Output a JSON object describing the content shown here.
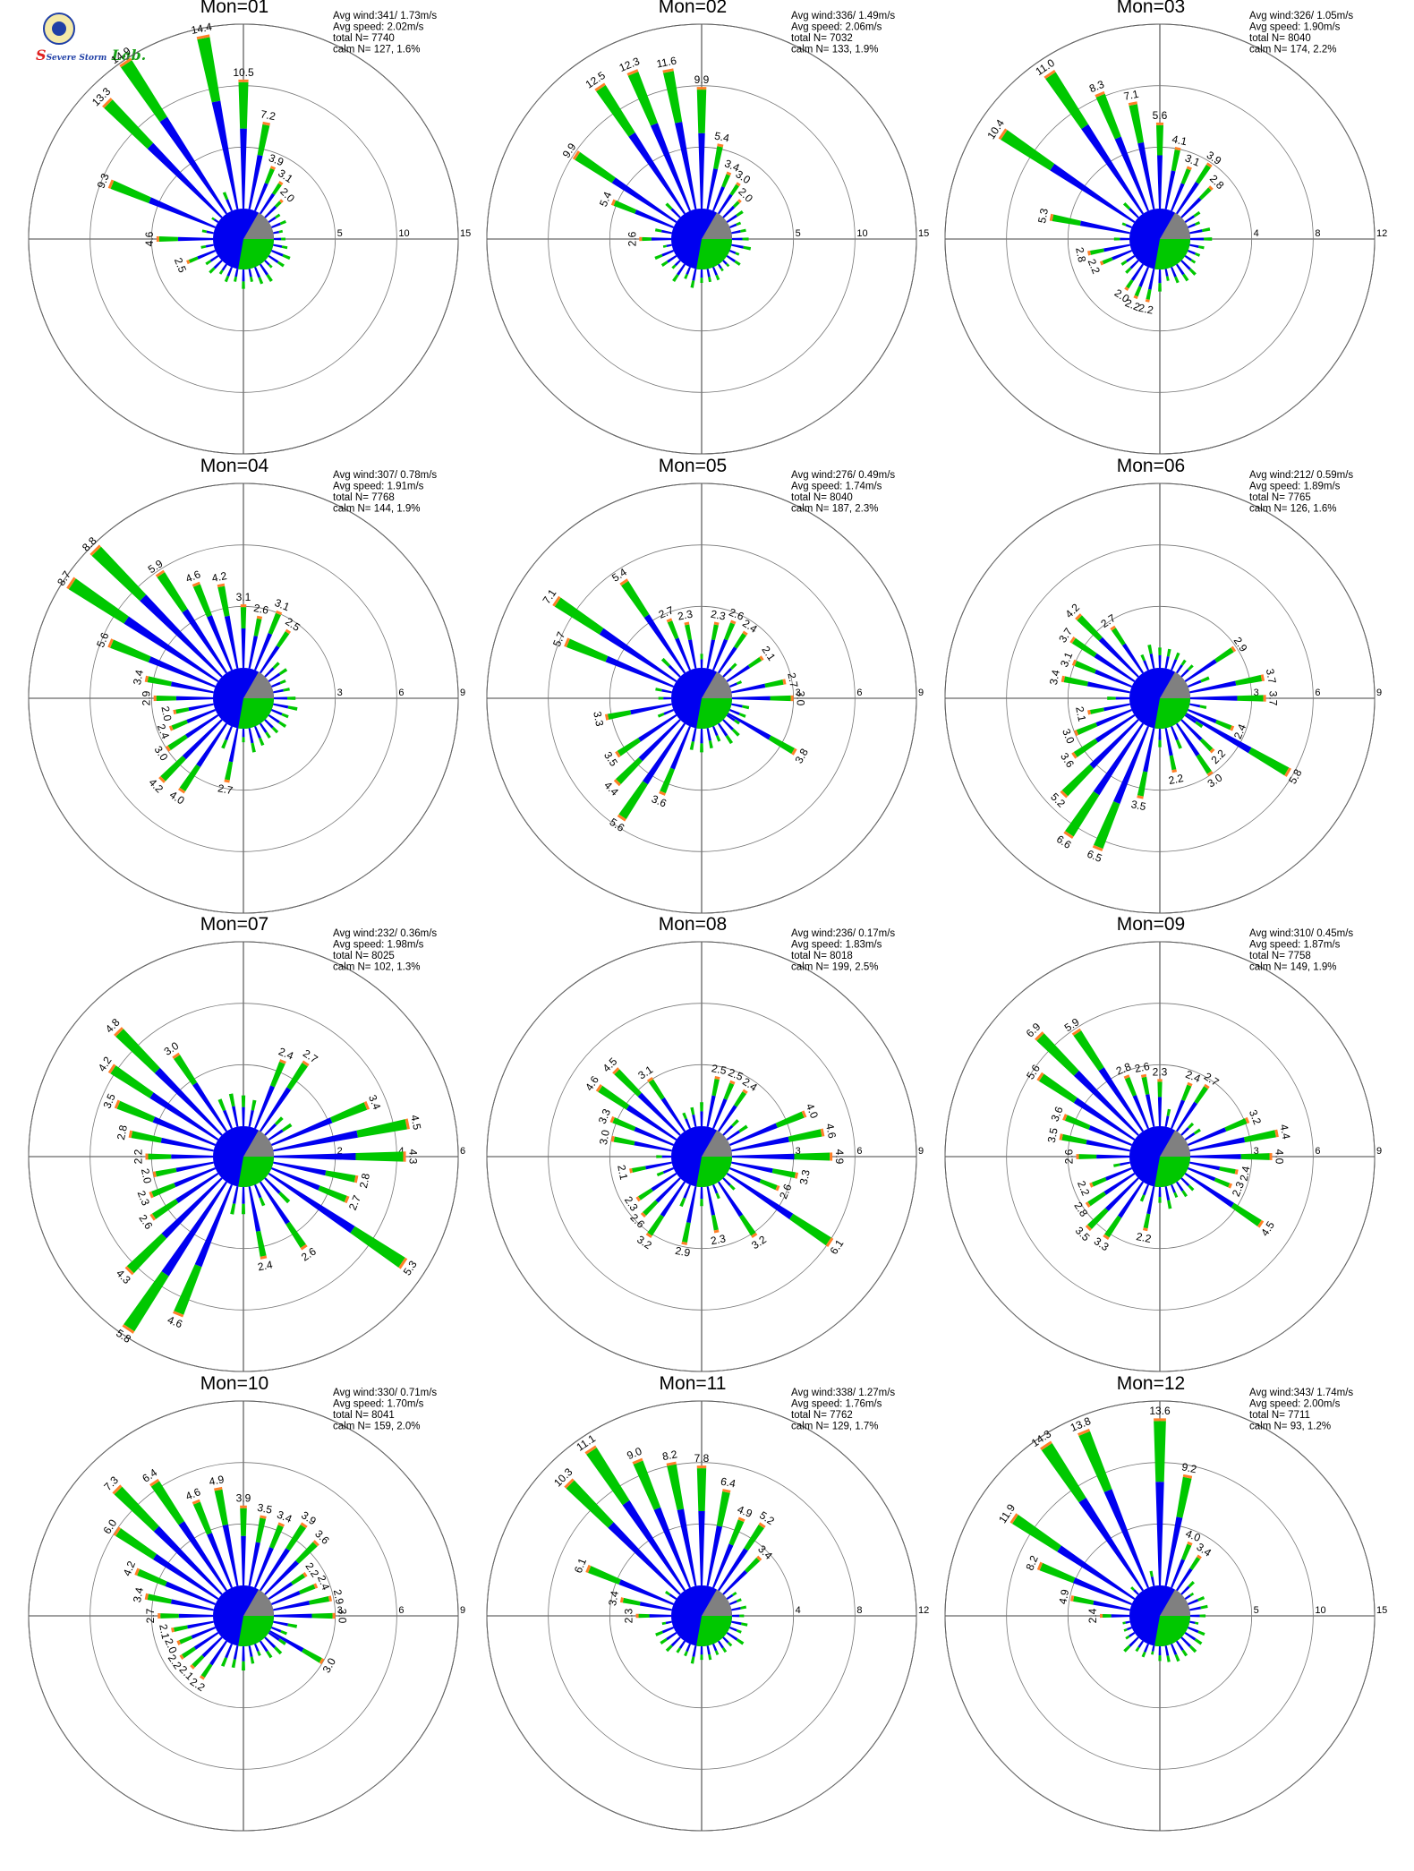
{
  "logo": {
    "text_a": "Severe",
    "text_b": "Storm",
    "text_c": "Lab."
  },
  "colors": {
    "outer_band": "#00c800",
    "inner_band": "#0000f0",
    "top_band": "#ff7f27",
    "calm": "#808080",
    "axis": "#000000",
    "grid": "#000000"
  },
  "chart_data": [
    {
      "type": "wind-rose",
      "title": "Mon=01",
      "ring_labels": [
        "5",
        "10",
        "15"
      ],
      "rmax": 15,
      "stats": {
        "avg_wind": "Avg wind:341/ 1.73m/s",
        "avg_speed": "Avg speed: 2.02m/s",
        "total_n": "total N=      7740",
        "calm_n": "calm N=    127,   1.6%"
      },
      "labeled_directions": [
        {
          "dir": 247.5,
          "value": "2.5"
        },
        {
          "dir": 270,
          "value": "4.6"
        },
        {
          "dir": 292.5,
          "value": "9.3"
        },
        {
          "dir": 315,
          "value": "13.3"
        },
        {
          "dir": 326.25,
          "value": "14.9"
        },
        {
          "dir": 348.75,
          "value": "14.4"
        },
        {
          "dir": 0,
          "value": "10.5"
        },
        {
          "dir": 11.25,
          "value": "7.2"
        },
        {
          "dir": 22.5,
          "value": "3.9"
        },
        {
          "dir": 33.75,
          "value": "3.1"
        },
        {
          "dir": 45,
          "value": "2.0"
        }
      ]
    },
    {
      "type": "wind-rose",
      "title": "Mon=02",
      "ring_labels": [
        "5",
        "10",
        "15"
      ],
      "rmax": 15,
      "stats": {
        "avg_wind": "Avg wind:336/ 1.49m/s",
        "avg_speed": "Avg speed: 2.06m/s",
        "total_n": "total N=      7032",
        "calm_n": "calm N=    133,   1.9%"
      },
      "labeled_directions": [
        {
          "dir": 270,
          "value": "2.6"
        },
        {
          "dir": 292.5,
          "value": "5.4"
        },
        {
          "dir": 303.75,
          "value": "9.9"
        },
        {
          "dir": 326.25,
          "value": "12.5"
        },
        {
          "dir": 337.5,
          "value": "12.3"
        },
        {
          "dir": 348.75,
          "value": "11.6"
        },
        {
          "dir": 0,
          "value": "9.9"
        },
        {
          "dir": 11.25,
          "value": "5.4"
        },
        {
          "dir": 22.5,
          "value": "3.4"
        },
        {
          "dir": 33.75,
          "value": "3.0"
        },
        {
          "dir": 45,
          "value": "2.0"
        }
      ]
    },
    {
      "type": "wind-rose",
      "title": "Mon=03",
      "ring_labels": [
        "4",
        "8",
        "12"
      ],
      "rmax": 12,
      "stats": {
        "avg_wind": "Avg wind:326/ 1.05m/s",
        "avg_speed": "Avg speed: 1.90m/s",
        "total_n": "total N=      8040",
        "calm_n": "calm N=    174,   2.2%"
      },
      "labeled_directions": [
        {
          "dir": 247.5,
          "value": "2.2"
        },
        {
          "dir": 258.75,
          "value": "2.8"
        },
        {
          "dir": 281.25,
          "value": "5.3"
        },
        {
          "dir": 303.75,
          "value": "10.4"
        },
        {
          "dir": 326.25,
          "value": "11.0"
        },
        {
          "dir": 337.5,
          "value": "8.3"
        },
        {
          "dir": 348.75,
          "value": "7.1"
        },
        {
          "dir": 0,
          "value": "5.6"
        },
        {
          "dir": 11.25,
          "value": "4.1"
        },
        {
          "dir": 22.5,
          "value": "3.1"
        },
        {
          "dir": 33.75,
          "value": "3.9"
        },
        {
          "dir": 45,
          "value": "2.8"
        },
        {
          "dir": 191.25,
          "value": "2.2"
        },
        {
          "dir": 202.5,
          "value": "2.2"
        },
        {
          "dir": 213.75,
          "value": "2.0"
        }
      ]
    },
    {
      "type": "wind-rose",
      "title": "Mon=04",
      "ring_labels": [
        "3",
        "6",
        "9"
      ],
      "rmax": 9,
      "stats": {
        "avg_wind": "Avg wind:307/ 0.78m/s",
        "avg_speed": "Avg speed: 1.91m/s",
        "total_n": "total N=      7768",
        "calm_n": "calm N=    144,   1.9%"
      },
      "labeled_directions": [
        {
          "dir": 258.75,
          "value": "2.0"
        },
        {
          "dir": 270,
          "value": "2.9"
        },
        {
          "dir": 281.25,
          "value": "3.4"
        },
        {
          "dir": 292.5,
          "value": "5.6"
        },
        {
          "dir": 303.75,
          "value": "8.7"
        },
        {
          "dir": 315,
          "value": "8.8"
        },
        {
          "dir": 326.25,
          "value": "5.9"
        },
        {
          "dir": 337.5,
          "value": "4.6"
        },
        {
          "dir": 348.75,
          "value": "4.2"
        },
        {
          "dir": 0,
          "value": "3.1"
        },
        {
          "dir": 11.25,
          "value": "2.6"
        },
        {
          "dir": 22.5,
          "value": "3.1"
        },
        {
          "dir": 33.75,
          "value": "2.5"
        },
        {
          "dir": 191.25,
          "value": "2.7"
        },
        {
          "dir": 213.75,
          "value": "4.0"
        },
        {
          "dir": 225,
          "value": "4.2"
        },
        {
          "dir": 236.25,
          "value": "3.0"
        },
        {
          "dir": 247.5,
          "value": "2.4"
        }
      ]
    },
    {
      "type": "wind-rose",
      "title": "Mon=05",
      "ring_labels": [
        "3",
        "6",
        "9"
      ],
      "rmax": 9,
      "stats": {
        "avg_wind": "Avg wind:276/ 0.49m/s",
        "avg_speed": "Avg speed: 1.74m/s",
        "total_n": "total N=      8040",
        "calm_n": "calm N=    187,   2.3%"
      },
      "labeled_directions": [
        {
          "dir": 292.5,
          "value": "5.7"
        },
        {
          "dir": 303.75,
          "value": "7.1"
        },
        {
          "dir": 326.25,
          "value": "5.4"
        },
        {
          "dir": 337.5,
          "value": "2.7"
        },
        {
          "dir": 348.75,
          "value": "2.3"
        },
        {
          "dir": 11.25,
          "value": "2.3"
        },
        {
          "dir": 22.5,
          "value": "2.6"
        },
        {
          "dir": 33.75,
          "value": "2.4"
        },
        {
          "dir": 56.25,
          "value": "2.1"
        },
        {
          "dir": 78.75,
          "value": "2.7"
        },
        {
          "dir": 90,
          "value": "3.0"
        },
        {
          "dir": 120,
          "value": "3.8"
        },
        {
          "dir": 202.5,
          "value": "3.6"
        },
        {
          "dir": 213.75,
          "value": "5.6"
        },
        {
          "dir": 225,
          "value": "4.4"
        },
        {
          "dir": 236.25,
          "value": "3.5"
        },
        {
          "dir": 258.75,
          "value": "3.3"
        }
      ]
    },
    {
      "type": "wind-rose",
      "title": "Mon=06",
      "ring_labels": [
        "3",
        "6",
        "9"
      ],
      "rmax": 9,
      "stats": {
        "avg_wind": "Avg wind:212/ 0.59m/s",
        "avg_speed": "Avg speed: 1.89m/s",
        "total_n": "total N=      7765",
        "calm_n": "calm N=    126,   1.6%"
      },
      "labeled_directions": [
        {
          "dir": 281.25,
          "value": "3.4"
        },
        {
          "dir": 292.5,
          "value": "3.1"
        },
        {
          "dir": 303.75,
          "value": "3.7"
        },
        {
          "dir": 315,
          "value": "4.2"
        },
        {
          "dir": 326.25,
          "value": "2.7"
        },
        {
          "dir": 56.25,
          "value": "2.9"
        },
        {
          "dir": 78.75,
          "value": "3.7"
        },
        {
          "dir": 90,
          "value": "3.7"
        },
        {
          "dir": 112.5,
          "value": "2.4"
        },
        {
          "dir": 120,
          "value": "5.8"
        },
        {
          "dir": 135,
          "value": "2.2"
        },
        {
          "dir": 146.25,
          "value": "3.0"
        },
        {
          "dir": 168.75,
          "value": "2.2"
        },
        {
          "dir": 191.25,
          "value": "3.5"
        },
        {
          "dir": 202.5,
          "value": "6.5"
        },
        {
          "dir": 213.75,
          "value": "6.6"
        },
        {
          "dir": 225,
          "value": "5.2"
        },
        {
          "dir": 236.25,
          "value": "3.6"
        },
        {
          "dir": 247.5,
          "value": "3.0"
        },
        {
          "dir": 258.75,
          "value": "2.1"
        }
      ]
    },
    {
      "type": "wind-rose",
      "title": "Mon=07",
      "ring_labels": [
        "2",
        "4",
        "6"
      ],
      "rmax": 6,
      "stats": {
        "avg_wind": "Avg wind:232/ 0.36m/s",
        "avg_speed": "Avg speed: 1.98m/s",
        "total_n": "total N=      8025",
        "calm_n": "calm N=    102,   1.3%"
      },
      "labeled_directions": [
        {
          "dir": 270,
          "value": "2.2"
        },
        {
          "dir": 281.25,
          "value": "2.8"
        },
        {
          "dir": 292.5,
          "value": "3.5"
        },
        {
          "dir": 303.75,
          "value": "4.2"
        },
        {
          "dir": 315,
          "value": "4.8"
        },
        {
          "dir": 326.25,
          "value": "3.0"
        },
        {
          "dir": 22.5,
          "value": "2.4"
        },
        {
          "dir": 33.75,
          "value": "2.7"
        },
        {
          "dir": 67.5,
          "value": "3.4"
        },
        {
          "dir": 78.75,
          "value": "4.5"
        },
        {
          "dir": 90,
          "value": "4.3"
        },
        {
          "dir": 101.25,
          "value": "2.8"
        },
        {
          "dir": 112.5,
          "value": "2.7"
        },
        {
          "dir": 123.75,
          "value": "5.3"
        },
        {
          "dir": 146.25,
          "value": "2.6"
        },
        {
          "dir": 168.75,
          "value": "2.4"
        },
        {
          "dir": 202.5,
          "value": "4.6"
        },
        {
          "dir": 213.75,
          "value": "5.8"
        },
        {
          "dir": 225,
          "value": "4.3"
        },
        {
          "dir": 236.25,
          "value": "2.6"
        },
        {
          "dir": 247.5,
          "value": "2.3"
        },
        {
          "dir": 258.75,
          "value": "2.0"
        }
      ]
    },
    {
      "type": "wind-rose",
      "title": "Mon=08",
      "ring_labels": [
        "3",
        "6",
        "9"
      ],
      "rmax": 9,
      "stats": {
        "avg_wind": "Avg wind:236/ 0.17m/s",
        "avg_speed": "Avg speed: 1.83m/s",
        "total_n": "total N=      8018",
        "calm_n": "calm N=    199,   2.5%"
      },
      "labeled_directions": [
        {
          "dir": 281.25,
          "value": "3.0"
        },
        {
          "dir": 292.5,
          "value": "3.3"
        },
        {
          "dir": 303.75,
          "value": "4.6"
        },
        {
          "dir": 315,
          "value": "4.5"
        },
        {
          "dir": 326.25,
          "value": "3.1"
        },
        {
          "dir": 11.25,
          "value": "2.5"
        },
        {
          "dir": 22.5,
          "value": "2.5"
        },
        {
          "dir": 33.75,
          "value": "2.4"
        },
        {
          "dir": 67.5,
          "value": "4.0"
        },
        {
          "dir": 78.75,
          "value": "4.6"
        },
        {
          "dir": 90,
          "value": "4.9"
        },
        {
          "dir": 101.25,
          "value": "3.3"
        },
        {
          "dir": 112.5,
          "value": "2.6"
        },
        {
          "dir": 123.75,
          "value": "6.1"
        },
        {
          "dir": 146.25,
          "value": "3.2"
        },
        {
          "dir": 168.75,
          "value": "2.3"
        },
        {
          "dir": 191.25,
          "value": "2.9"
        },
        {
          "dir": 213.75,
          "value": "3.2"
        },
        {
          "dir": 225,
          "value": "2.6"
        },
        {
          "dir": 236.25,
          "value": "2.3"
        },
        {
          "dir": 258.75,
          "value": "2.1"
        }
      ]
    },
    {
      "type": "wind-rose",
      "title": "Mon=09",
      "ring_labels": [
        "3",
        "6",
        "9"
      ],
      "rmax": 9,
      "stats": {
        "avg_wind": "Avg wind:310/ 0.45m/s",
        "avg_speed": "Avg speed: 1.87m/s",
        "total_n": "total N=      7758",
        "calm_n": "calm N=    149,   1.9%"
      },
      "labeled_directions": [
        {
          "dir": 270,
          "value": "2.6"
        },
        {
          "dir": 281.25,
          "value": "3.5"
        },
        {
          "dir": 292.5,
          "value": "3.6"
        },
        {
          "dir": 303.75,
          "value": "5.6"
        },
        {
          "dir": 315,
          "value": "6.9"
        },
        {
          "dir": 326.25,
          "value": "5.9"
        },
        {
          "dir": 337.5,
          "value": "2.8"
        },
        {
          "dir": 348.75,
          "value": "2.6"
        },
        {
          "dir": 0,
          "value": "2.3"
        },
        {
          "dir": 22.5,
          "value": "2.4"
        },
        {
          "dir": 33.75,
          "value": "2.7"
        },
        {
          "dir": 67.5,
          "value": "3.2"
        },
        {
          "dir": 78.75,
          "value": "4.4"
        },
        {
          "dir": 90,
          "value": "4.0"
        },
        {
          "dir": 101.25,
          "value": "2.4"
        },
        {
          "dir": 112.5,
          "value": "2.3"
        },
        {
          "dir": 123.75,
          "value": "4.5"
        },
        {
          "dir": 191.25,
          "value": "2.2"
        },
        {
          "dir": 213.75,
          "value": "3.3"
        },
        {
          "dir": 225,
          "value": "3.5"
        },
        {
          "dir": 236.25,
          "value": "2.8"
        },
        {
          "dir": 247.5,
          "value": "2.2"
        }
      ]
    },
    {
      "type": "wind-rose",
      "title": "Mon=10",
      "ring_labels": [
        "3",
        "6",
        "9"
      ],
      "rmax": 9,
      "stats": {
        "avg_wind": "Avg wind:330/ 0.71m/s",
        "avg_speed": "Avg speed: 1.70m/s",
        "total_n": "total N=      8041",
        "calm_n": "calm N=    159,   2.0%"
      },
      "labeled_directions": [
        {
          "dir": 247.5,
          "value": "2.0"
        },
        {
          "dir": 258.75,
          "value": "2.1"
        },
        {
          "dir": 270,
          "value": "2.7"
        },
        {
          "dir": 281.25,
          "value": "3.4"
        },
        {
          "dir": 292.5,
          "value": "4.2"
        },
        {
          "dir": 303.75,
          "value": "6.0"
        },
        {
          "dir": 315,
          "value": "7.3"
        },
        {
          "dir": 326.25,
          "value": "6.4"
        },
        {
          "dir": 337.5,
          "value": "4.6"
        },
        {
          "dir": 348.75,
          "value": "4.9"
        },
        {
          "dir": 0,
          "value": "3.9"
        },
        {
          "dir": 11.25,
          "value": "3.5"
        },
        {
          "dir": 22.5,
          "value": "3.4"
        },
        {
          "dir": 33.75,
          "value": "3.9"
        },
        {
          "dir": 45,
          "value": "3.6"
        },
        {
          "dir": 56.25,
          "value": "2.2"
        },
        {
          "dir": 67.5,
          "value": "2.4"
        },
        {
          "dir": 78.75,
          "value": "2.9"
        },
        {
          "dir": 90,
          "value": "3.0"
        },
        {
          "dir": 120,
          "value": "3.0"
        },
        {
          "dir": 213.75,
          "value": "2.2"
        },
        {
          "dir": 225,
          "value": "2.1"
        },
        {
          "dir": 236.25,
          "value": "2.2"
        }
      ]
    },
    {
      "type": "wind-rose",
      "title": "Mon=11",
      "ring_labels": [
        "4",
        "8",
        "12"
      ],
      "rmax": 12,
      "stats": {
        "avg_wind": "Avg wind:338/ 1.27m/s",
        "avg_speed": "Avg speed: 1.76m/s",
        "total_n": "total N=      7762",
        "calm_n": "calm N=    129,   1.7%"
      },
      "labeled_directions": [
        {
          "dir": 270,
          "value": "2.3"
        },
        {
          "dir": 281.25,
          "value": "3.4"
        },
        {
          "dir": 292.5,
          "value": "6.1"
        },
        {
          "dir": 315,
          "value": "10.3"
        },
        {
          "dir": 326.25,
          "value": "11.1"
        },
        {
          "dir": 337.5,
          "value": "9.0"
        },
        {
          "dir": 348.75,
          "value": "8.2"
        },
        {
          "dir": 0,
          "value": "7.8"
        },
        {
          "dir": 11.25,
          "value": "6.4"
        },
        {
          "dir": 22.5,
          "value": "4.9"
        },
        {
          "dir": 33.75,
          "value": "5.2"
        },
        {
          "dir": 45,
          "value": "3.4"
        }
      ]
    },
    {
      "type": "wind-rose",
      "title": "Mon=12",
      "ring_labels": [
        "5",
        "10",
        "15"
      ],
      "rmax": 15,
      "stats": {
        "avg_wind": "Avg wind:343/ 1.74m/s",
        "avg_speed": "Avg speed: 2.00m/s",
        "total_n": "total N=      7711",
        "calm_n": "calm N=     93,   1.2%"
      },
      "labeled_directions": [
        {
          "dir": 270,
          "value": "2.4"
        },
        {
          "dir": 281.25,
          "value": "4.9"
        },
        {
          "dir": 292.5,
          "value": "8.2"
        },
        {
          "dir": 303.75,
          "value": "11.9"
        },
        {
          "dir": 326.25,
          "value": "14.3"
        },
        {
          "dir": 337.5,
          "value": "13.8"
        },
        {
          "dir": 0,
          "value": "13.6"
        },
        {
          "dir": 11.25,
          "value": "9.2"
        },
        {
          "dir": 22.5,
          "value": "4.0"
        },
        {
          "dir": 33.75,
          "value": "3.4"
        }
      ]
    }
  ]
}
